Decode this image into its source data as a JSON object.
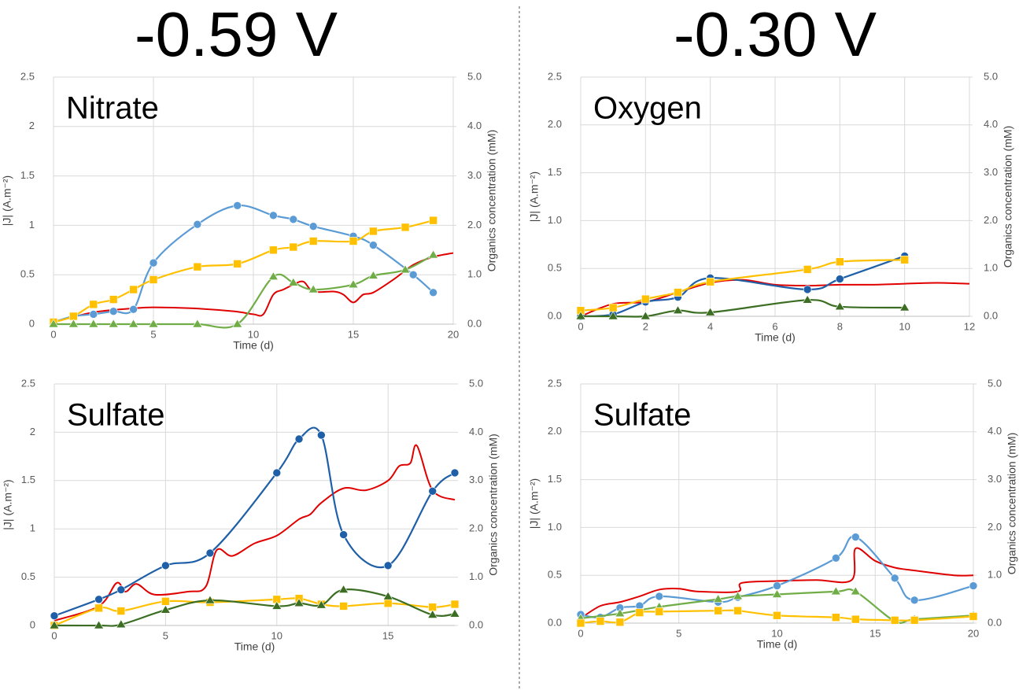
{
  "headings": [
    "-0.59 V",
    "-0.30 V"
  ],
  "chart_data": [
    {
      "type": "line",
      "annotation": "Nitrate",
      "xlabel": "Time (d)",
      "ylabel": "|J| (A.m⁻²)",
      "y2label": "Organics concentration (mM)",
      "xlim": [
        0,
        20
      ],
      "xticks": [
        0,
        5,
        10,
        15,
        20
      ],
      "ylim": [
        0,
        2.5
      ],
      "yticks": [
        0,
        0.5,
        1,
        1.5,
        2,
        2.5
      ],
      "y2lim": [
        0,
        5
      ],
      "y2ticks": [
        {
          "value": 0,
          "label": "0.0"
        },
        {
          "value": 1,
          "label": "1.0"
        },
        {
          "value": 2,
          "label": "2.0"
        },
        {
          "value": 3,
          "label": "3.0"
        },
        {
          "value": 4,
          "label": "4.0"
        },
        {
          "value": 5,
          "label": "5.0"
        }
      ],
      "grid": true,
      "series": [
        {
          "color": "#e00000",
          "x": [
            0,
            2,
            4,
            5,
            7,
            9,
            10,
            10.5,
            11,
            11.5,
            12,
            12.5,
            13,
            14,
            14.5,
            15,
            15.5,
            16,
            17,
            18,
            19,
            20
          ],
          "values": [
            0.02,
            0.12,
            0.16,
            0.17,
            0.16,
            0.13,
            0.1,
            0.1,
            0.3,
            0.35,
            0.4,
            0.43,
            0.33,
            0.33,
            0.3,
            0.22,
            0.3,
            0.32,
            0.45,
            0.6,
            0.68,
            0.72
          ]
        },
        {
          "color": "#5b9bd5",
          "marker": "circle",
          "axis": "y2",
          "x": [
            0,
            1,
            2,
            3,
            4,
            5,
            7.2,
            9.2,
            11,
            12,
            13,
            15,
            16,
            18,
            19
          ],
          "values": [
            0.04,
            0.16,
            0.2,
            0.26,
            0.3,
            1.24,
            2.02,
            2.4,
            2.2,
            2.12,
            1.98,
            1.78,
            1.6,
            1.0,
            0.64
          ]
        },
        {
          "color": "#ffc000",
          "marker": "square",
          "axis": "y2",
          "x": [
            0,
            1,
            2,
            3,
            4,
            5,
            7.2,
            9.2,
            11,
            12,
            13,
            15,
            16,
            17.6,
            19
          ],
          "values": [
            0.04,
            0.16,
            0.4,
            0.5,
            0.7,
            0.9,
            1.16,
            1.22,
            1.5,
            1.56,
            1.68,
            1.68,
            1.88,
            1.96,
            2.1
          ]
        },
        {
          "color": "#70ad47",
          "marker": "triangle",
          "axis": "y2",
          "x": [
            0,
            1,
            2,
            3,
            4,
            5,
            7.2,
            9.2,
            11,
            12,
            13,
            15,
            16,
            17.6,
            19
          ],
          "values": [
            0,
            0,
            0,
            0,
            0,
            0,
            0,
            0,
            0.96,
            0.84,
            0.7,
            0.8,
            0.98,
            1.1,
            1.4
          ]
        }
      ]
    },
    {
      "type": "line",
      "annotation": "Oxygen",
      "xlabel": "Time (d)",
      "ylabel": "|J| (A.m⁻²)",
      "y2label": "Organics concentration (mM)",
      "xlim": [
        0,
        12
      ],
      "xticks": [
        0,
        2,
        4,
        6,
        8,
        10,
        12
      ],
      "ylim": [
        0,
        2.5
      ],
      "yticks": [
        {
          "value": 0,
          "label": "0.0"
        },
        {
          "value": 0.5,
          "label": "0.5"
        },
        {
          "value": 1,
          "label": "1.0"
        },
        {
          "value": 1.5,
          "label": "1.5"
        },
        {
          "value": 2,
          "label": "2.0"
        },
        {
          "value": 2.5,
          "label": "2.5"
        }
      ],
      "y2lim": [
        0,
        5
      ],
      "y2ticks": [
        {
          "value": 0,
          "label": "0.0"
        },
        {
          "value": 1,
          "label": "1.0"
        },
        {
          "value": 2,
          "label": "2.0"
        },
        {
          "value": 3,
          "label": "3.0"
        },
        {
          "value": 4,
          "label": "4.0"
        },
        {
          "value": 5,
          "label": "5.0"
        }
      ],
      "grid": true,
      "series": [
        {
          "color": "#e00000",
          "x": [
            0,
            1,
            2,
            3,
            4,
            5,
            6,
            7,
            8,
            9,
            10,
            11,
            12
          ],
          "values": [
            0,
            0.13,
            0.15,
            0.25,
            0.35,
            0.38,
            0.33,
            0.32,
            0.33,
            0.33,
            0.34,
            0.35,
            0.34
          ]
        },
        {
          "color": "#1f5fa8",
          "marker": "circle",
          "axis": "y2",
          "x": [
            0,
            1,
            2,
            3,
            4,
            7,
            8,
            10
          ],
          "values": [
            0,
            0.04,
            0.3,
            0.4,
            0.8,
            0.56,
            0.78,
            1.26
          ]
        },
        {
          "color": "#ffc000",
          "marker": "square",
          "axis": "y2",
          "x": [
            0,
            1,
            2,
            3,
            4,
            7,
            8,
            10
          ],
          "values": [
            0.12,
            0.18,
            0.36,
            0.5,
            0.72,
            0.98,
            1.14,
            1.18
          ]
        },
        {
          "color": "#3b6e22",
          "marker": "triangle",
          "axis": "y2",
          "x": [
            0,
            1,
            2,
            3,
            4,
            7,
            8,
            10
          ],
          "values": [
            0,
            0,
            0,
            0.12,
            0.08,
            0.34,
            0.2,
            0.18
          ]
        }
      ]
    },
    {
      "type": "line",
      "annotation": "Sulfate",
      "xlabel": "Time (d)",
      "ylabel": "|J| (A.m⁻²)",
      "y2label": "Organics concentration (mM)",
      "xlim": [
        0,
        18
      ],
      "xticks": [
        0,
        5,
        10,
        15
      ],
      "ylim": [
        0,
        2.5
      ],
      "yticks": [
        0,
        0.5,
        1,
        1.5,
        2,
        2.5
      ],
      "y2lim": [
        0,
        5
      ],
      "y2ticks": [
        {
          "value": 0,
          "label": "0.0"
        },
        {
          "value": 1,
          "label": "1.0"
        },
        {
          "value": 2,
          "label": "2.0"
        },
        {
          "value": 3,
          "label": "3.0"
        },
        {
          "value": 4,
          "label": "4.0"
        },
        {
          "value": 5,
          "label": "5.0"
        }
      ],
      "grid": true,
      "series": [
        {
          "color": "#e00000",
          "x": [
            0,
            2,
            2.8,
            3.2,
            3.7,
            4.5,
            6,
            6.8,
            7.3,
            8,
            9,
            10,
            11,
            11.5,
            12,
            13,
            14,
            15,
            15.5,
            16,
            16.3,
            17,
            18
          ],
          "values": [
            0.05,
            0.2,
            0.44,
            0.35,
            0.43,
            0.32,
            0.35,
            0.4,
            0.78,
            0.72,
            0.85,
            0.93,
            1.1,
            1.15,
            1.27,
            1.42,
            1.4,
            1.5,
            1.65,
            1.68,
            1.86,
            1.4,
            1.3
          ]
        },
        {
          "color": "#1f5fa8",
          "marker": "circle",
          "axis": "y2",
          "x": [
            0,
            2,
            3,
            5,
            7,
            10,
            11,
            12,
            13,
            15,
            17,
            18
          ],
          "values": [
            0.2,
            0.54,
            0.74,
            1.24,
            1.5,
            3.16,
            3.86,
            3.94,
            1.88,
            1.24,
            2.78,
            3.16
          ]
        },
        {
          "color": "#ffc000",
          "marker": "square",
          "axis": "y2",
          "x": [
            0,
            2,
            3,
            5,
            7,
            10,
            11,
            12,
            13,
            15,
            17,
            18
          ],
          "values": [
            0,
            0.36,
            0.3,
            0.5,
            0.48,
            0.54,
            0.56,
            0.44,
            0.4,
            0.46,
            0.38,
            0.44
          ]
        },
        {
          "color": "#3b6e22",
          "marker": "triangle",
          "axis": "y2",
          "x": [
            0,
            2,
            3,
            5,
            7,
            10,
            11,
            12,
            13,
            15,
            17,
            18
          ],
          "values": [
            0,
            0,
            0.02,
            0.32,
            0.52,
            0.4,
            0.46,
            0.42,
            0.74,
            0.6,
            0.22,
            0.24
          ]
        }
      ]
    },
    {
      "type": "line",
      "annotation": "Sulfate",
      "xlabel": "Time (d)",
      "ylabel": "|J| (A.m⁻²)",
      "y2label": "Organics concentration (mM)",
      "xlim": [
        0,
        20
      ],
      "xticks": [
        0,
        5,
        10,
        15,
        20
      ],
      "ylim": [
        0,
        2.5
      ],
      "yticks": [
        {
          "value": 0,
          "label": "0.0"
        },
        {
          "value": 0.5,
          "label": "0.5"
        },
        {
          "value": 1,
          "label": "1.0"
        },
        {
          "value": 1.5,
          "label": "1.5"
        },
        {
          "value": 2,
          "label": "2.0"
        },
        {
          "value": 2.5,
          "label": "2.5"
        }
      ],
      "y2lim": [
        0,
        5
      ],
      "y2ticks": [
        {
          "value": 0,
          "label": "0.0"
        },
        {
          "value": 1,
          "label": "1.0"
        },
        {
          "value": 2,
          "label": "2.0"
        },
        {
          "value": 3,
          "label": "3.0"
        },
        {
          "value": 4,
          "label": "4.0"
        },
        {
          "value": 5,
          "label": "5.0"
        }
      ],
      "grid": true,
      "series": [
        {
          "color": "#e00000",
          "x": [
            0,
            1,
            2,
            3,
            4,
            5,
            6,
            8,
            8.2,
            10,
            12,
            13.8,
            14,
            15,
            16,
            17,
            19,
            20
          ],
          "values": [
            0.05,
            0.18,
            0.22,
            0.28,
            0.35,
            0.36,
            0.33,
            0.33,
            0.42,
            0.44,
            0.45,
            0.45,
            0.78,
            0.65,
            0.58,
            0.55,
            0.5,
            0.5
          ]
        },
        {
          "color": "#5b9bd5",
          "marker": "circle",
          "axis": "y2",
          "x": [
            0,
            1,
            2,
            3,
            4,
            7,
            8,
            10,
            13,
            14,
            16,
            17,
            20
          ],
          "values": [
            0.18,
            0.12,
            0.32,
            0.36,
            0.56,
            0.44,
            0.54,
            0.78,
            1.36,
            1.8,
            0.94,
            0.48,
            0.78
          ]
        },
        {
          "color": "#70ad47",
          "marker": "triangle",
          "axis": "y2",
          "x": [
            0,
            2,
            4,
            7,
            8,
            10,
            13,
            14,
            16,
            17,
            20
          ],
          "values": [
            0.1,
            0.2,
            0.34,
            0.5,
            0.56,
            0.6,
            0.66,
            0.66,
            0.04,
            0.08,
            0.16
          ]
        },
        {
          "color": "#ffc000",
          "marker": "square",
          "axis": "y2",
          "x": [
            0,
            1,
            2,
            3,
            4,
            7,
            8,
            10,
            13,
            14,
            16,
            17,
            20
          ],
          "values": [
            0,
            0.04,
            0.02,
            0.22,
            0.24,
            0.26,
            0.26,
            0.16,
            0.12,
            0.08,
            0.06,
            0.06,
            0.14
          ]
        }
      ]
    }
  ]
}
